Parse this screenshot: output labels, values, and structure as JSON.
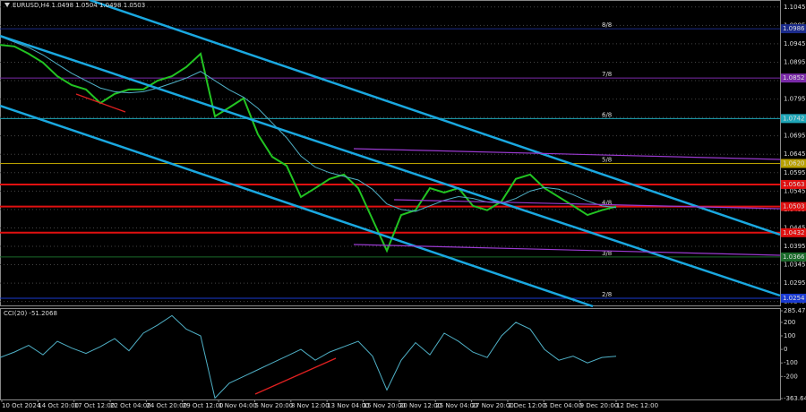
{
  "chart_data": [
    {
      "type": "line",
      "title": "EURUSD,H4 1.0498 1.0504 1.0498 1.0503",
      "ylim": [
        1.0232,
        1.1064
      ],
      "yticks": [
        1.1045,
        1.0995,
        1.0945,
        1.0895,
        1.0845,
        1.0795,
        1.0745,
        1.0695,
        1.0645,
        1.0595,
        1.0545,
        1.0495,
        1.0445,
        1.0395,
        1.0345,
        1.0295,
        1.0245
      ],
      "x_labels": [
        "10 Oct 2024",
        "14 Oct 20:00",
        "17 Oct 12:00",
        "22 Oct 04:00",
        "24 Oct 20:00",
        "29 Oct 12:00",
        "1 Nov 04:00",
        "5 Nov 20:00",
        "8 Nov 12:00",
        "13 Nov 04:00",
        "15 Nov 20:00",
        "20 Nov 12:00",
        "25 Nov 04:00",
        "27 Nov 20:00",
        "2 Dec 12:00",
        "5 Dec 04:00",
        "9 Dec 20:00",
        "12 Dec 12:00"
      ],
      "grid": true,
      "series": [
        {
          "color": "#22c422",
          "values": [
            1.0942,
            1.0938,
            1.0918,
            1.0894,
            1.0857,
            1.0833,
            1.0821,
            1.0784,
            1.0809,
            1.0821,
            1.0821,
            1.0845,
            1.0857,
            1.0882,
            1.0918,
            1.0748,
            1.0772,
            1.0797,
            1.0699,
            1.0638,
            1.0614,
            1.0529,
            1.0553,
            1.0578,
            1.059,
            1.0553,
            1.0468,
            1.0383,
            1.048,
            1.0493,
            1.0553,
            1.0541,
            1.0553,
            1.0505,
            1.0493,
            1.0517,
            1.0578,
            1.059,
            1.0553,
            1.0529,
            1.0505,
            1.048,
            1.0493,
            1.0503
          ]
        },
        {
          "color": "#4fb0c6",
          "values": [
            1.0965,
            1.095,
            1.0935,
            1.0915,
            1.089,
            1.0865,
            1.0845,
            1.0825,
            1.0815,
            1.0812,
            1.0815,
            1.0825,
            1.0838,
            1.0852,
            1.087,
            1.0845,
            1.082,
            1.08,
            1.077,
            1.073,
            1.069,
            1.064,
            1.061,
            1.0595,
            1.0585,
            1.0575,
            1.055,
            1.051,
            1.0495,
            1.049,
            1.0505,
            1.052,
            1.053,
            1.0525,
            1.0515,
            1.0512,
            1.0525,
            1.0545,
            1.0555,
            1.055,
            1.0535,
            1.0518,
            1.0505,
            1.05
          ]
        }
      ],
      "levels": [
        {
          "value": 1.0986,
          "label": "1.0986",
          "color": "#1a2a8a",
          "murray": "8/8"
        },
        {
          "value": 1.0852,
          "label": "1.0852",
          "color": "#7a2aa8",
          "murray": "7/8"
        },
        {
          "value": 1.0742,
          "label": "1.0742",
          "color": "#1fa6b8",
          "murray": "6/8"
        },
        {
          "value": 1.062,
          "label": "1.0620",
          "color": "#b8a000",
          "murray": "5/8"
        },
        {
          "value": 1.0563,
          "label": "1.0563",
          "color": "#e01010"
        },
        {
          "value": 1.0503,
          "label": "1.0503",
          "color": "#e01010",
          "murray": "4/8"
        },
        {
          "value": 1.0432,
          "label": "1.0432",
          "color": "#e01010"
        },
        {
          "value": 1.0366,
          "label": "1.0366",
          "color": "#1a6a2a",
          "murray": "3/8"
        },
        {
          "value": 1.0254,
          "label": "1.0254",
          "color": "#1a3ad0",
          "murray": "2/8"
        }
      ]
    },
    {
      "type": "line",
      "title": "CCI(20) -51.2068",
      "ylim": [
        -363.6431,
        285.4725
      ],
      "yticks": [
        285.4725,
        200,
        100,
        0,
        -100,
        -200,
        -363.6431
      ],
      "series": [
        {
          "color": "#4fb0c6",
          "values": [
            -60,
            -20,
            30,
            -40,
            60,
            10,
            -30,
            20,
            80,
            -10,
            120,
            180,
            250,
            150,
            100,
            -360,
            -250,
            -200,
            -150,
            -100,
            -50,
            0,
            -80,
            -20,
            20,
            60,
            -50,
            -300,
            -80,
            50,
            -40,
            120,
            60,
            -20,
            -60,
            100,
            200,
            150,
            0,
            -80,
            -50,
            -100,
            -60,
            -51
          ]
        }
      ]
    }
  ]
}
